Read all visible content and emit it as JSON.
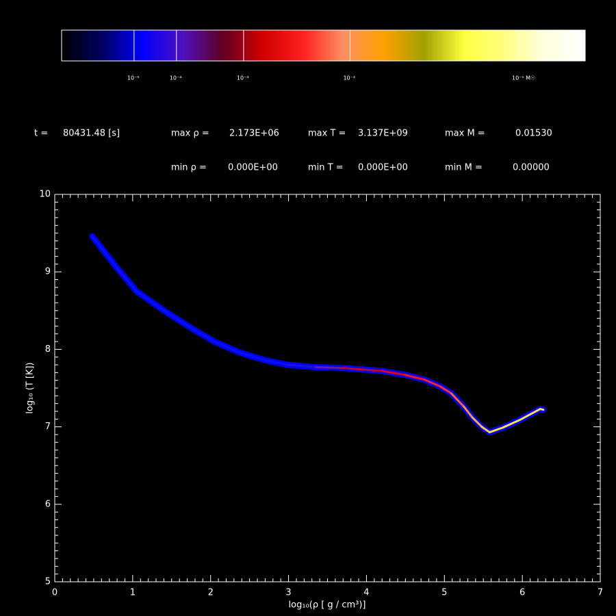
{
  "chart_data": {
    "type": "line",
    "x_label": "log₁₀(ρ [ g / cm³)]",
    "y_label": "log₁₀ (T [K])",
    "xlim": [
      0,
      7
    ],
    "ylim": [
      5,
      10
    ],
    "xticks": [
      0,
      1,
      2,
      3,
      4,
      5,
      6,
      7
    ],
    "yticks": [
      5,
      6,
      7,
      8,
      9,
      10
    ],
    "minor_divisions": 10,
    "x": [
      0.48,
      0.8,
      1.05,
      1.4,
      1.76,
      2.05,
      2.37,
      2.7,
      2.99,
      3.35,
      3.69,
      4.21,
      4.5,
      4.74,
      4.95,
      5.09,
      5.25,
      5.36,
      5.48,
      5.58,
      5.75,
      5.97,
      6.1,
      6.23,
      6.27
    ],
    "values": [
      9.46,
      9.05,
      8.75,
      8.5,
      8.27,
      8.1,
      7.96,
      7.86,
      7.8,
      7.77,
      7.76,
      7.72,
      7.67,
      7.61,
      7.52,
      7.43,
      7.26,
      7.12,
      7.0,
      6.93,
      6.99,
      7.09,
      7.16,
      7.23,
      7.22
    ],
    "point_colors": [
      "#0010ff",
      "#0010ff",
      "#0010ff",
      "#0010ff",
      "#0010ff",
      "#0010ff",
      "#0010ff",
      "#0010ff",
      "#0010ff",
      "#2010e0",
      "#6020a0",
      "#c00020",
      "#e00010",
      "#ff1010",
      "#ff2020",
      "#ff3020",
      "#ff6020",
      "#ff9020",
      "#ffb020",
      "#ffd030",
      "#ffe040",
      "#ffe040",
      "#ffe040",
      "#ffe040",
      "#ffe040"
    ],
    "halo_color": "#0000f0",
    "colorbar": {
      "lim": [
        0,
        0.197
      ],
      "power": 0.2,
      "colors": [
        "#000000",
        "#000060",
        "#0000ff",
        "#5010c0",
        "#600020",
        "#d00000",
        "#ff2020",
        "#ff9060",
        "#ffa000",
        "#a0a000",
        "#ffff40",
        "#ffff80",
        "#ffffe0",
        "#ffffff"
      ],
      "ticks": [
        {
          "value": 1e-05,
          "label": "10⁻⁵"
        },
        {
          "value": 0.0001,
          "label": "10⁻⁴"
        },
        {
          "value": 0.001,
          "label": "10⁻³"
        },
        {
          "value": 0.01,
          "label": "10⁻²"
        },
        {
          "value": 0.1,
          "label": "10⁻¹ M☉"
        }
      ]
    },
    "stats": [
      [
        "t =",
        "80431.48 [s]"
      ],
      [
        "max ρ =",
        "2.173E+06"
      ],
      [
        "max T =",
        "3.137E+09"
      ],
      [
        "max M =",
        "0.01530"
      ],
      [
        "min ρ =",
        "0.000E+00"
      ],
      [
        "min T =",
        "0.000E+00"
      ],
      [
        "min M =",
        "0.00000"
      ]
    ]
  }
}
